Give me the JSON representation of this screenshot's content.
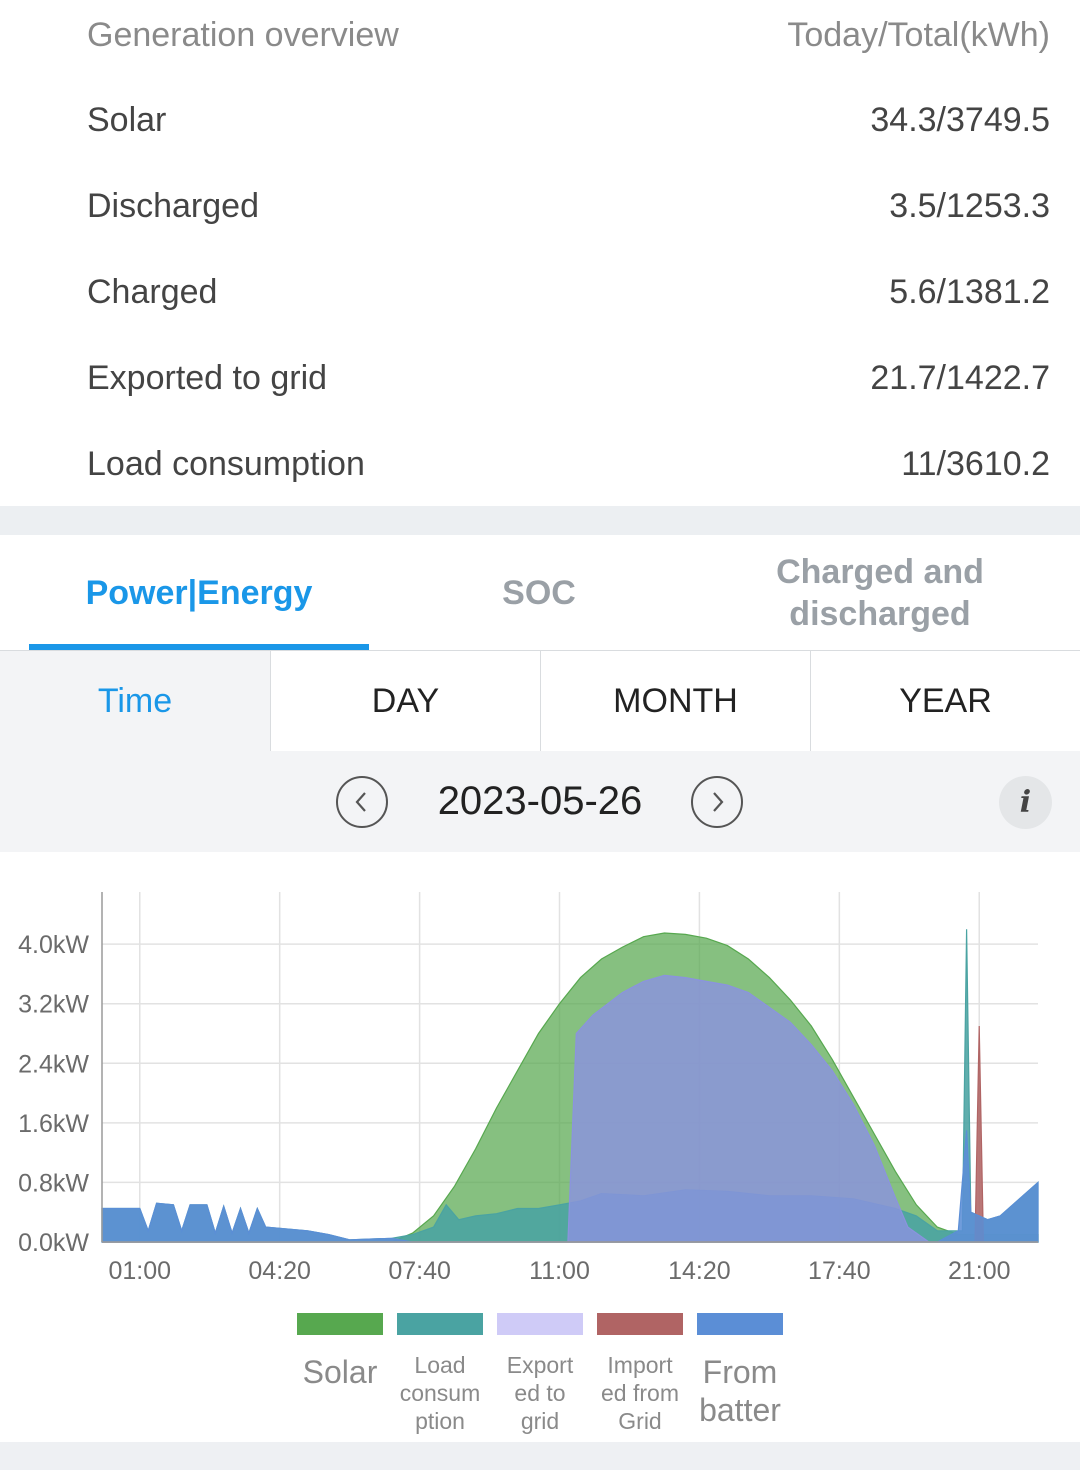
{
  "overview": {
    "title": "Generation overview",
    "unit_label": "Today/Total(kWh)",
    "rows": [
      {
        "label": "Solar",
        "value": "34.3/3749.5"
      },
      {
        "label": "Discharged",
        "value": "3.5/1253.3"
      },
      {
        "label": "Charged",
        "value": "5.6/1381.2"
      },
      {
        "label": "Exported to grid",
        "value": "21.7/1422.7"
      },
      {
        "label": "Load consumption",
        "value": "11/3610.2"
      }
    ]
  },
  "tabs": [
    {
      "label": "Power|Energy",
      "active": true
    },
    {
      "label": "SOC",
      "active": false
    },
    {
      "label": "Charged and discharged",
      "active": false
    }
  ],
  "periods": [
    "Time",
    "DAY",
    "MONTH",
    "YEAR"
  ],
  "selected_period": "Time",
  "date": "2023-05-26",
  "icons": {
    "prev": "chevron-left-icon",
    "next": "chevron-right-icon",
    "info": "info-icon"
  },
  "info_glyph": "i",
  "chart_data": {
    "type": "area",
    "y_tick_labels": [
      "0.0kW",
      "0.8kW",
      "1.6kW",
      "2.4kW",
      "3.2kW",
      "4.0kW"
    ],
    "y_ticks": [
      0,
      0.8,
      1.6,
      2.4,
      3.2,
      4.0
    ],
    "ylim": [
      0,
      4.7
    ],
    "x_tick_labels": [
      "01:00",
      "04:20",
      "07:40",
      "11:00",
      "14:20",
      "17:40",
      "21:00"
    ],
    "x_ticks": [
      1.0,
      4.333,
      7.667,
      11.0,
      14.333,
      17.667,
      21.0
    ],
    "xlim": [
      0.1,
      22.4
    ],
    "grid": true,
    "legend_position": "bottom",
    "series": [
      {
        "name": "Solar",
        "color": "#57a84f",
        "points": [
          [
            0.1,
            0
          ],
          [
            7.0,
            0
          ],
          [
            7.5,
            0.12
          ],
          [
            8.0,
            0.35
          ],
          [
            8.5,
            0.75
          ],
          [
            9.0,
            1.25
          ],
          [
            9.5,
            1.8
          ],
          [
            10.0,
            2.3
          ],
          [
            10.5,
            2.8
          ],
          [
            11.0,
            3.2
          ],
          [
            11.5,
            3.55
          ],
          [
            12.0,
            3.8
          ],
          [
            12.5,
            3.96
          ],
          [
            13.0,
            4.1
          ],
          [
            13.5,
            4.15
          ],
          [
            14.0,
            4.13
          ],
          [
            14.5,
            4.08
          ],
          [
            15.0,
            3.98
          ],
          [
            15.5,
            3.8
          ],
          [
            16.0,
            3.55
          ],
          [
            16.5,
            3.25
          ],
          [
            17.0,
            2.9
          ],
          [
            17.5,
            2.45
          ],
          [
            18.0,
            1.95
          ],
          [
            18.5,
            1.45
          ],
          [
            19.0,
            0.95
          ],
          [
            19.5,
            0.5
          ],
          [
            20.0,
            0.2
          ],
          [
            20.5,
            0.1
          ],
          [
            22.4,
            0.1
          ]
        ]
      },
      {
        "name": "Load consumption",
        "color": "#4aa3a2",
        "points": [
          [
            0.1,
            0.45
          ],
          [
            1.0,
            0.45
          ],
          [
            1.2,
            0.15
          ],
          [
            1.4,
            0.52
          ],
          [
            1.8,
            0.5
          ],
          [
            2.0,
            0.15
          ],
          [
            2.2,
            0.5
          ],
          [
            2.6,
            0.5
          ],
          [
            2.8,
            0.12
          ],
          [
            3.0,
            0.48
          ],
          [
            3.2,
            0.12
          ],
          [
            3.4,
            0.45
          ],
          [
            3.6,
            0.12
          ],
          [
            3.8,
            0.45
          ],
          [
            4.0,
            0.2
          ],
          [
            5.0,
            0.15
          ],
          [
            5.5,
            0.1
          ],
          [
            6.0,
            0.03
          ],
          [
            7.0,
            0.05
          ],
          [
            7.5,
            0.1
          ],
          [
            8.0,
            0.2
          ],
          [
            8.3,
            0.5
          ],
          [
            8.6,
            0.3
          ],
          [
            9.0,
            0.35
          ],
          [
            9.5,
            0.38
          ],
          [
            10.0,
            0.45
          ],
          [
            10.5,
            0.45
          ],
          [
            11.0,
            0.5
          ],
          [
            11.5,
            0.55
          ],
          [
            12.0,
            0.65
          ],
          [
            13.0,
            0.62
          ],
          [
            14.0,
            0.7
          ],
          [
            15.0,
            0.68
          ],
          [
            16.0,
            0.62
          ],
          [
            17.0,
            0.62
          ],
          [
            18.0,
            0.58
          ],
          [
            19.0,
            0.45
          ],
          [
            19.5,
            0.35
          ],
          [
            20.0,
            0.15
          ],
          [
            20.6,
            0.15
          ],
          [
            20.7,
            4.2
          ],
          [
            20.8,
            0.4
          ],
          [
            21.2,
            0.3
          ],
          [
            21.5,
            0.35
          ],
          [
            22.0,
            0.6
          ],
          [
            22.4,
            0.8
          ]
        ]
      },
      {
        "name": "Exported to grid",
        "color": "#8b93df",
        "points": [
          [
            0.1,
            0
          ],
          [
            11.2,
            0
          ],
          [
            11.4,
            2.8
          ],
          [
            11.8,
            3.05
          ],
          [
            12.5,
            3.35
          ],
          [
            13.0,
            3.5
          ],
          [
            13.5,
            3.58
          ],
          [
            14.0,
            3.55
          ],
          [
            14.5,
            3.5
          ],
          [
            15.0,
            3.45
          ],
          [
            15.5,
            3.35
          ],
          [
            16.0,
            3.15
          ],
          [
            16.5,
            2.95
          ],
          [
            17.0,
            2.65
          ],
          [
            17.5,
            2.3
          ],
          [
            18.0,
            1.85
          ],
          [
            18.5,
            1.3
          ],
          [
            19.0,
            0.6
          ],
          [
            19.3,
            0.2
          ],
          [
            19.8,
            0
          ],
          [
            22.4,
            0
          ]
        ]
      },
      {
        "name": "Imported from Grid",
        "color": "#b06464",
        "points": [
          [
            0.1,
            0
          ],
          [
            20.9,
            0
          ],
          [
            21.0,
            2.9
          ],
          [
            21.1,
            0
          ],
          [
            22.4,
            0
          ]
        ]
      },
      {
        "name": "From batter",
        "color": "#5b8ed6",
        "points": [
          [
            0.1,
            0.45
          ],
          [
            1.0,
            0.45
          ],
          [
            1.2,
            0.15
          ],
          [
            1.4,
            0.52
          ],
          [
            1.8,
            0.5
          ],
          [
            2.0,
            0.15
          ],
          [
            2.2,
            0.5
          ],
          [
            2.6,
            0.5
          ],
          [
            2.8,
            0.12
          ],
          [
            3.0,
            0.48
          ],
          [
            3.2,
            0.12
          ],
          [
            3.4,
            0.45
          ],
          [
            3.6,
            0.12
          ],
          [
            3.8,
            0.45
          ],
          [
            4.0,
            0.2
          ],
          [
            5.0,
            0.15
          ],
          [
            5.5,
            0.1
          ],
          [
            6.0,
            0.03
          ],
          [
            7.0,
            0.05
          ],
          [
            7.5,
            0.0
          ],
          [
            20.0,
            0.0
          ],
          [
            20.5,
            0.15
          ],
          [
            20.7,
            1.5
          ],
          [
            20.8,
            0.4
          ],
          [
            21.2,
            0.3
          ],
          [
            21.5,
            0.35
          ],
          [
            22.0,
            0.6
          ],
          [
            22.4,
            0.8
          ]
        ]
      }
    ]
  },
  "legend": [
    {
      "label": "Solar",
      "color": "#57a84f"
    },
    {
      "label": "Load consumption",
      "color": "#4aa3a2"
    },
    {
      "label": "Exported to grid",
      "color": "#cfcbf7"
    },
    {
      "label": "Imported from Grid",
      "color": "#b06464"
    },
    {
      "label": "From batter",
      "color": "#5b8ed6"
    }
  ],
  "legend_display": [
    "Solar",
    "Load\nconsum\nption",
    "Export\ned to\ngrid",
    "Import\ned from\nGrid",
    "From\nbatter"
  ]
}
